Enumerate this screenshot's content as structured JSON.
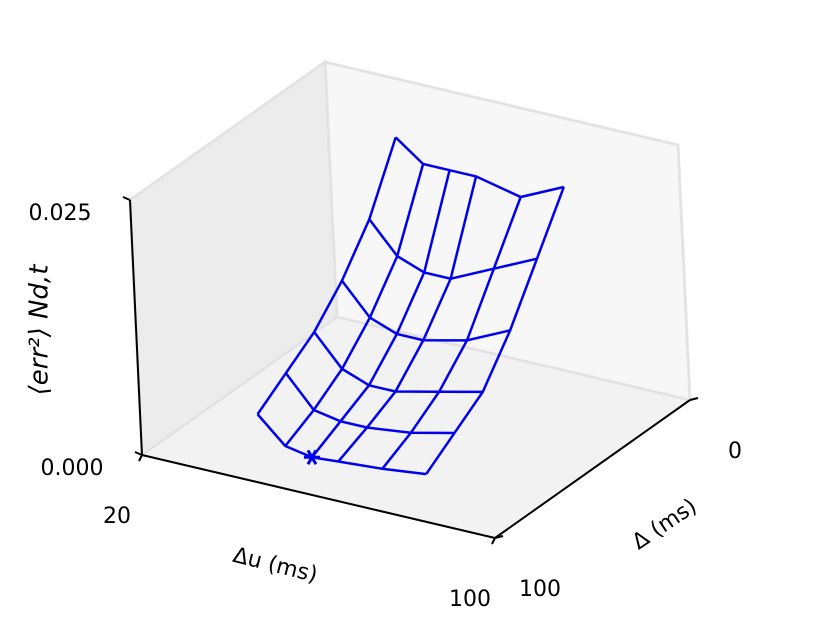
{
  "chart_data": {
    "type": "surface",
    "x_label": "Δu (ms)",
    "y_label": "Δ (ms)",
    "z_label": "⟨err²⟩ Nd,t",
    "x": [
      40,
      46,
      52,
      58,
      68,
      78
    ],
    "y": [
      10,
      25,
      40,
      55,
      70,
      85
    ],
    "z": [
      [
        0.021,
        0.019,
        0.019,
        0.019,
        0.018,
        0.02
      ],
      [
        0.015,
        0.012,
        0.011,
        0.011,
        0.013,
        0.015
      ],
      [
        0.011,
        0.008,
        0.007,
        0.007,
        0.008,
        0.01
      ],
      [
        0.008,
        0.005,
        0.004,
        0.004,
        0.005,
        0.006
      ],
      [
        0.006,
        0.003,
        0.0025,
        0.0025,
        0.003,
        0.004
      ],
      [
        0.004,
        0.0015,
        0.001,
        0.0012,
        0.0015,
        0.002
      ]
    ],
    "marker": {
      "x": 52,
      "y": 85,
      "z": 0.001
    },
    "color": "#0000ee",
    "xlim": [
      20,
      100
    ],
    "xticks": [
      20,
      100
    ],
    "ylim": [
      0,
      100
    ],
    "yticks": [
      0,
      100
    ],
    "zlim": [
      0,
      0.025
    ],
    "zticks": [
      {
        "value": 0,
        "label": "0.000"
      },
      0.025
    ]
  }
}
